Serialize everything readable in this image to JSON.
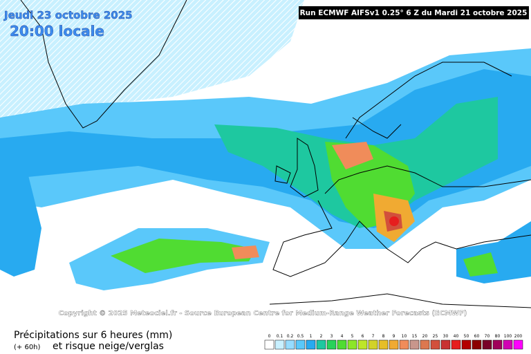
{
  "header": {
    "date": "Jeudi 23 octobre 2025",
    "time": "20:00 locale",
    "run": "Run ECMWF AIFSv1 0.25° 6 Z du Mardi 21 octobre 2025"
  },
  "copyright": "Copyright © 2025 Meteociel.fr - Source European Centre for Medium-Range Weather Forecasts (ECMWF)",
  "footer": {
    "title": "Précipitations sur 6 heures (mm)",
    "lead": "(+ 60h)",
    "subtitle": "et risque neige/verglas"
  },
  "legend": {
    "items": [
      {
        "label": "0",
        "color": "#ffffff"
      },
      {
        "label": "0.1",
        "color": "#c8f0ff"
      },
      {
        "label": "0.2",
        "color": "#96dcff"
      },
      {
        "label": "0.5",
        "color": "#5ac8fa"
      },
      {
        "label": "1",
        "color": "#28aaf0"
      },
      {
        "label": "2",
        "color": "#1ec8a0"
      },
      {
        "label": "3",
        "color": "#28d25a"
      },
      {
        "label": "4",
        "color": "#50dc32"
      },
      {
        "label": "5",
        "color": "#8ce628"
      },
      {
        "label": "6",
        "color": "#bee628"
      },
      {
        "label": "7",
        "color": "#d2d228"
      },
      {
        "label": "8",
        "color": "#e6be28"
      },
      {
        "label": "9",
        "color": "#f0aa32"
      },
      {
        "label": "10",
        "color": "#f08c5a"
      },
      {
        "label": "15",
        "color": "#c8968c"
      },
      {
        "label": "20",
        "color": "#dc7850"
      },
      {
        "label": "25",
        "color": "#d2503c"
      },
      {
        "label": "30",
        "color": "#c83232"
      },
      {
        "label": "40",
        "color": "#e61e1e"
      },
      {
        "label": "50",
        "color": "#b40000"
      },
      {
        "label": "60",
        "color": "#8c0000"
      },
      {
        "label": "70",
        "color": "#780028"
      },
      {
        "label": "80",
        "color": "#a0005a"
      },
      {
        "label": "100",
        "color": "#d200b4"
      },
      {
        "label": "200",
        "color": "#ff00ff"
      }
    ]
  }
}
